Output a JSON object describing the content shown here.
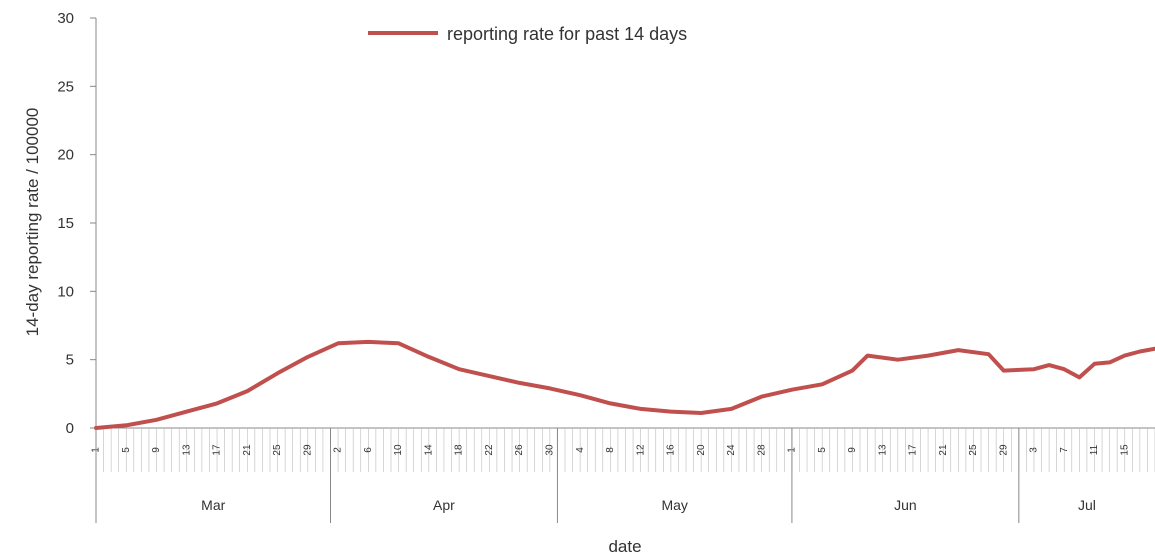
{
  "chart_data": {
    "type": "line",
    "title": "",
    "xlabel": "date",
    "ylabel": "14-day reporting rate / 100000",
    "ylim": [
      0,
      30
    ],
    "yticks": [
      "0",
      "5",
      "10",
      "15",
      "20",
      "25",
      "30"
    ],
    "grid": false,
    "legend_placement": "top-center",
    "color": "#c0504d",
    "x_start": "Mar 1",
    "x_end": "Jul 19",
    "day_tick_labels": [
      "1",
      "5",
      "9",
      "13",
      "17",
      "21",
      "25",
      "29",
      "2",
      "6",
      "10",
      "14",
      "18",
      "22",
      "26",
      "30",
      "4",
      "8",
      "12",
      "16",
      "20",
      "24",
      "28",
      "1",
      "5",
      "9",
      "13",
      "17",
      "21",
      "25",
      "29",
      "3",
      "7",
      "11",
      "15"
    ],
    "months": [
      {
        "label": "Mar",
        "days": 31
      },
      {
        "label": "Apr",
        "days": 30
      },
      {
        "label": "May",
        "days": 31
      },
      {
        "label": "Jun",
        "days": 30
      },
      {
        "label": "Jul",
        "days": 19
      }
    ],
    "series": [
      {
        "name": "reporting rate for past 14 days",
        "points": [
          [
            "Mar 1",
            0.0
          ],
          [
            "Mar 5",
            0.2
          ],
          [
            "Mar 9",
            0.6
          ],
          [
            "Mar 13",
            1.2
          ],
          [
            "Mar 17",
            1.8
          ],
          [
            "Mar 21",
            2.7
          ],
          [
            "Mar 25",
            4.0
          ],
          [
            "Mar 29",
            5.2
          ],
          [
            "Apr 2",
            6.2
          ],
          [
            "Apr 6",
            6.3
          ],
          [
            "Apr 10",
            6.2
          ],
          [
            "Apr 14",
            5.2
          ],
          [
            "Apr 18",
            4.3
          ],
          [
            "Apr 22",
            3.8
          ],
          [
            "Apr 26",
            3.3
          ],
          [
            "Apr 30",
            2.9
          ],
          [
            "May 4",
            2.4
          ],
          [
            "May 8",
            1.8
          ],
          [
            "May 12",
            1.4
          ],
          [
            "May 16",
            1.2
          ],
          [
            "May 20",
            1.1
          ],
          [
            "May 24",
            1.4
          ],
          [
            "May 28",
            2.3
          ],
          [
            "Jun 1",
            2.8
          ],
          [
            "Jun 5",
            3.2
          ],
          [
            "Jun 9",
            4.2
          ],
          [
            "Jun 11",
            5.3
          ],
          [
            "Jun 15",
            5.0
          ],
          [
            "Jun 19",
            5.3
          ],
          [
            "Jun 23",
            5.7
          ],
          [
            "Jun 27",
            5.4
          ],
          [
            "Jun 29",
            4.2
          ],
          [
            "Jul 3",
            4.3
          ],
          [
            "Jul 5",
            4.6
          ],
          [
            "Jul 7",
            4.3
          ],
          [
            "Jul 9",
            3.7
          ],
          [
            "Jul 11",
            4.7
          ],
          [
            "Jul 13",
            4.8
          ],
          [
            "Jul 15",
            5.3
          ],
          [
            "Jul 17",
            5.6
          ],
          [
            "Jul 19",
            5.8
          ]
        ]
      }
    ]
  }
}
